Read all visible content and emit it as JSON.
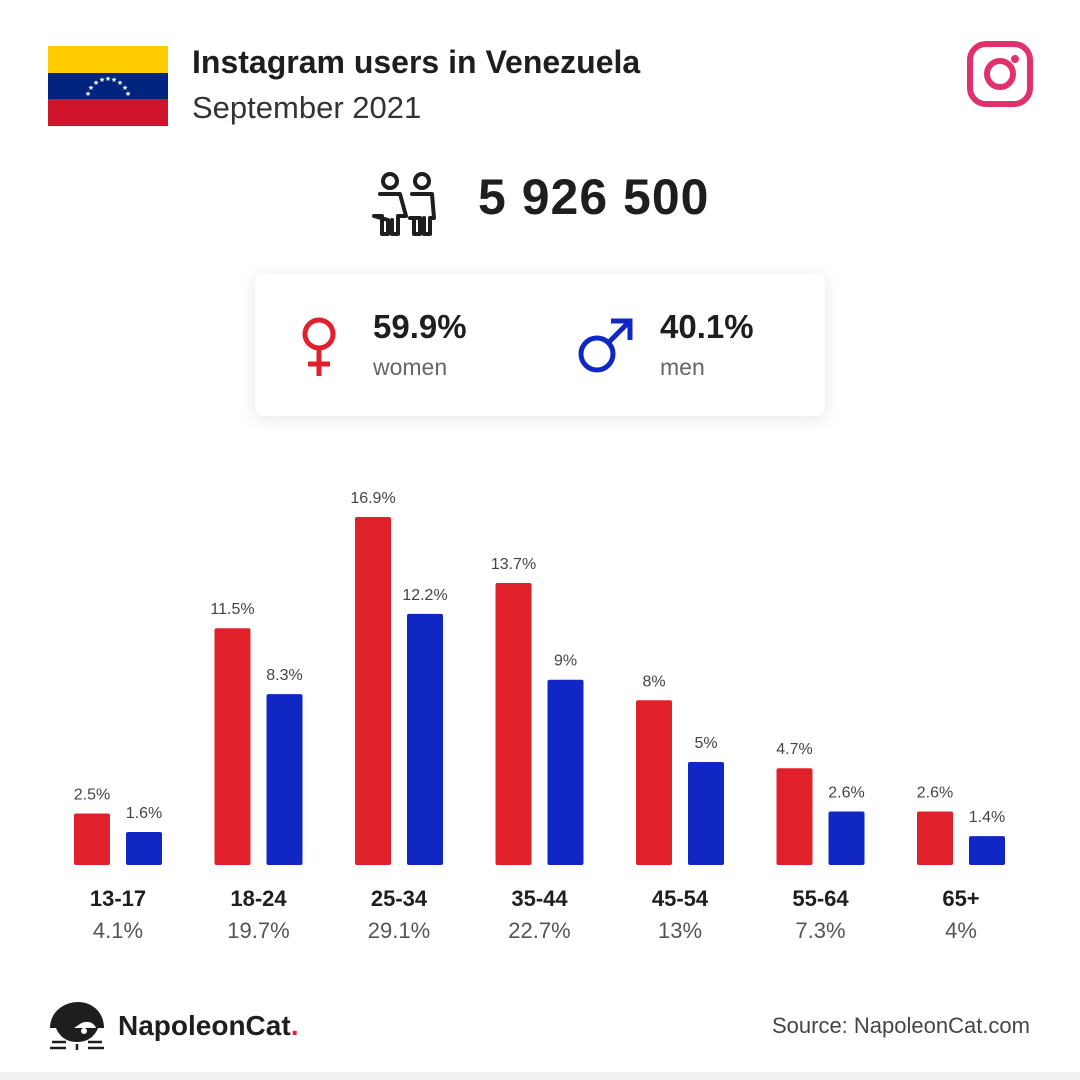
{
  "header": {
    "title": "Instagram users in Venezuela",
    "subtitle": "September 2021"
  },
  "flag": {
    "colors": {
      "yellow": "#FFCC00",
      "blue": "#00247D",
      "red": "#CF142B",
      "stars": "#FFFFFF"
    },
    "icon": "venezuela-flag"
  },
  "instagram_logo": {
    "icon": "instagram-icon",
    "color": "#E1306C"
  },
  "summary": {
    "total_users": "5 926 500",
    "users_icon": "people-icon"
  },
  "gender": {
    "women": {
      "percent": "59.9%",
      "label": "women",
      "icon": "female-symbol-icon",
      "color": "#E0202B"
    },
    "men": {
      "percent": "40.1%",
      "label": "men",
      "icon": "male-symbol-icon",
      "color": "#1027C4"
    }
  },
  "chart_data": {
    "type": "bar",
    "categories": [
      "13-17",
      "18-24",
      "25-34",
      "35-44",
      "45-54",
      "55-64",
      "65+"
    ],
    "category_totals": [
      "4.1%",
      "19.7%",
      "29.1%",
      "22.7%",
      "13%",
      "7.3%",
      "4%"
    ],
    "series": [
      {
        "key": "women",
        "color": "#E0202B",
        "values": [
          2.5,
          11.5,
          16.9,
          13.7,
          8,
          4.7,
          2.6
        ],
        "labels": [
          "2.5%",
          "11.5%",
          "16.9%",
          "13.7%",
          "8%",
          "4.7%",
          "2.6%"
        ]
      },
      {
        "key": "men",
        "color": "#1027C4",
        "values": [
          1.6,
          8.3,
          12.2,
          9,
          5,
          2.6,
          1.4
        ],
        "labels": [
          "1.6%",
          "8.3%",
          "12.2%",
          "9%",
          "5%",
          "2.6%",
          "1.4%"
        ]
      }
    ],
    "ylim": [
      0,
      17
    ],
    "grid": false,
    "legend": "none"
  },
  "footer": {
    "brand_name": "NapoleonCat",
    "brand_dot": ".",
    "brand_icon": "napoleoncat-logo-icon",
    "source": "Source: NapoleonCat.com"
  }
}
